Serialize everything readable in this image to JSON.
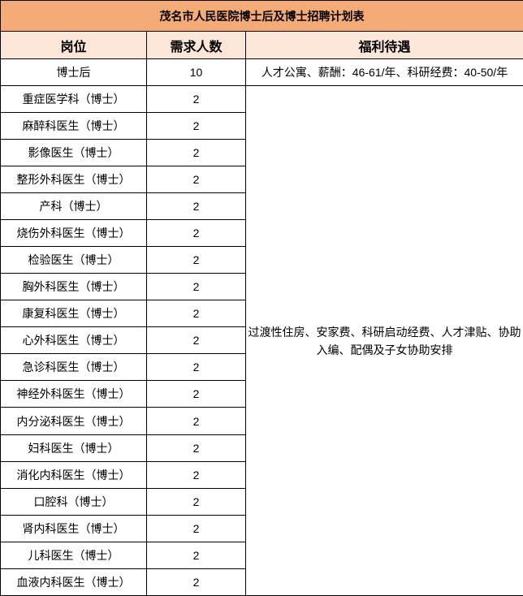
{
  "title": "茂名市人民医院博士后及博士招聘计划表",
  "columns": [
    "岗位",
    "需求人数",
    "福利待遇"
  ],
  "postdoc_row": {
    "position": "博士后",
    "count": "10",
    "benefits": "人才公寓、薪酬：46-61/年、科研经费：40-50/年"
  },
  "doctor_rows": [
    {
      "position": "重症医学科（博士）",
      "count": "2"
    },
    {
      "position": "麻醉科医生（博士）",
      "count": "2"
    },
    {
      "position": "影像医生（博士）",
      "count": "2"
    },
    {
      "position": "整形外科医生（博士）",
      "count": "2"
    },
    {
      "position": "产科（博士）",
      "count": "2"
    },
    {
      "position": "烧伤外科医生（博士）",
      "count": "2"
    },
    {
      "position": "检验医生（博士）",
      "count": "2"
    },
    {
      "position": "胸外科医生（博士）",
      "count": "2"
    },
    {
      "position": "康复科医生（博士）",
      "count": "2"
    },
    {
      "position": "心外科医生（博士）",
      "count": "2"
    },
    {
      "position": "急诊科医生（博士）",
      "count": "2"
    },
    {
      "position": "神经外科医生（博士）",
      "count": "2"
    },
    {
      "position": "内分泌科医生（博士）",
      "count": "2"
    },
    {
      "position": "妇科医生（博士）",
      "count": "2"
    },
    {
      "position": "消化内科医生（博士）",
      "count": "2"
    },
    {
      "position": "口腔科（博士）",
      "count": "2"
    },
    {
      "position": "肾内科医生（博士）",
      "count": "2"
    },
    {
      "position": "儿科医生（博士）",
      "count": "2"
    },
    {
      "position": "血液内科医生（博士）",
      "count": "2"
    }
  ],
  "merged_benefits": "过渡性住房、安家费、科研启动经费、人才津贴、协助入编、配偶及子女协助安排",
  "colors": {
    "title_bg": "#F5AB76",
    "header_bg": "#FCE6D8",
    "border": "#000000",
    "text": "#000000"
  }
}
